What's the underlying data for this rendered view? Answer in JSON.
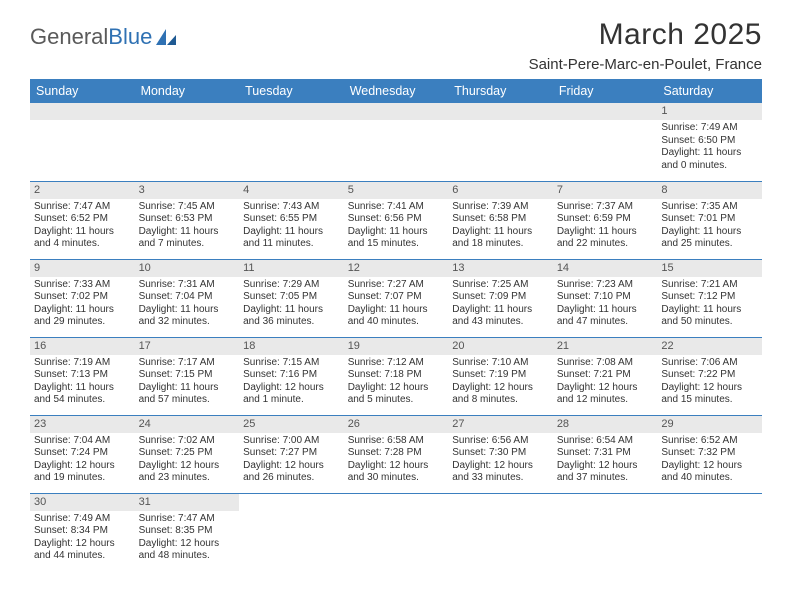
{
  "brand": {
    "part1": "General",
    "part2": "Blue"
  },
  "title": "March 2025",
  "location": "Saint-Pere-Marc-en-Poulet, France",
  "colors": {
    "header_bg": "#3b7fbf",
    "header_fg": "#ffffff",
    "daynum_bg": "#e9e9e9",
    "row_border": "#3b7fbf",
    "text": "#333333",
    "brand_accent": "#2f71b3"
  },
  "fonts": {
    "title_size": 30,
    "subtitle_size": 15,
    "header_size": 12.5,
    "cell_size": 10
  },
  "weekdays": [
    "Sunday",
    "Monday",
    "Tuesday",
    "Wednesday",
    "Thursday",
    "Friday",
    "Saturday"
  ],
  "weeks": [
    [
      null,
      null,
      null,
      null,
      null,
      null,
      {
        "n": "1",
        "sr": "Sunrise: 7:49 AM",
        "ss": "Sunset: 6:50 PM",
        "d1": "Daylight: 11 hours",
        "d2": "and 0 minutes."
      }
    ],
    [
      {
        "n": "2",
        "sr": "Sunrise: 7:47 AM",
        "ss": "Sunset: 6:52 PM",
        "d1": "Daylight: 11 hours",
        "d2": "and 4 minutes."
      },
      {
        "n": "3",
        "sr": "Sunrise: 7:45 AM",
        "ss": "Sunset: 6:53 PM",
        "d1": "Daylight: 11 hours",
        "d2": "and 7 minutes."
      },
      {
        "n": "4",
        "sr": "Sunrise: 7:43 AM",
        "ss": "Sunset: 6:55 PM",
        "d1": "Daylight: 11 hours",
        "d2": "and 11 minutes."
      },
      {
        "n": "5",
        "sr": "Sunrise: 7:41 AM",
        "ss": "Sunset: 6:56 PM",
        "d1": "Daylight: 11 hours",
        "d2": "and 15 minutes."
      },
      {
        "n": "6",
        "sr": "Sunrise: 7:39 AM",
        "ss": "Sunset: 6:58 PM",
        "d1": "Daylight: 11 hours",
        "d2": "and 18 minutes."
      },
      {
        "n": "7",
        "sr": "Sunrise: 7:37 AM",
        "ss": "Sunset: 6:59 PM",
        "d1": "Daylight: 11 hours",
        "d2": "and 22 minutes."
      },
      {
        "n": "8",
        "sr": "Sunrise: 7:35 AM",
        "ss": "Sunset: 7:01 PM",
        "d1": "Daylight: 11 hours",
        "d2": "and 25 minutes."
      }
    ],
    [
      {
        "n": "9",
        "sr": "Sunrise: 7:33 AM",
        "ss": "Sunset: 7:02 PM",
        "d1": "Daylight: 11 hours",
        "d2": "and 29 minutes."
      },
      {
        "n": "10",
        "sr": "Sunrise: 7:31 AM",
        "ss": "Sunset: 7:04 PM",
        "d1": "Daylight: 11 hours",
        "d2": "and 32 minutes."
      },
      {
        "n": "11",
        "sr": "Sunrise: 7:29 AM",
        "ss": "Sunset: 7:05 PM",
        "d1": "Daylight: 11 hours",
        "d2": "and 36 minutes."
      },
      {
        "n": "12",
        "sr": "Sunrise: 7:27 AM",
        "ss": "Sunset: 7:07 PM",
        "d1": "Daylight: 11 hours",
        "d2": "and 40 minutes."
      },
      {
        "n": "13",
        "sr": "Sunrise: 7:25 AM",
        "ss": "Sunset: 7:09 PM",
        "d1": "Daylight: 11 hours",
        "d2": "and 43 minutes."
      },
      {
        "n": "14",
        "sr": "Sunrise: 7:23 AM",
        "ss": "Sunset: 7:10 PM",
        "d1": "Daylight: 11 hours",
        "d2": "and 47 minutes."
      },
      {
        "n": "15",
        "sr": "Sunrise: 7:21 AM",
        "ss": "Sunset: 7:12 PM",
        "d1": "Daylight: 11 hours",
        "d2": "and 50 minutes."
      }
    ],
    [
      {
        "n": "16",
        "sr": "Sunrise: 7:19 AM",
        "ss": "Sunset: 7:13 PM",
        "d1": "Daylight: 11 hours",
        "d2": "and 54 minutes."
      },
      {
        "n": "17",
        "sr": "Sunrise: 7:17 AM",
        "ss": "Sunset: 7:15 PM",
        "d1": "Daylight: 11 hours",
        "d2": "and 57 minutes."
      },
      {
        "n": "18",
        "sr": "Sunrise: 7:15 AM",
        "ss": "Sunset: 7:16 PM",
        "d1": "Daylight: 12 hours",
        "d2": "and 1 minute."
      },
      {
        "n": "19",
        "sr": "Sunrise: 7:12 AM",
        "ss": "Sunset: 7:18 PM",
        "d1": "Daylight: 12 hours",
        "d2": "and 5 minutes."
      },
      {
        "n": "20",
        "sr": "Sunrise: 7:10 AM",
        "ss": "Sunset: 7:19 PM",
        "d1": "Daylight: 12 hours",
        "d2": "and 8 minutes."
      },
      {
        "n": "21",
        "sr": "Sunrise: 7:08 AM",
        "ss": "Sunset: 7:21 PM",
        "d1": "Daylight: 12 hours",
        "d2": "and 12 minutes."
      },
      {
        "n": "22",
        "sr": "Sunrise: 7:06 AM",
        "ss": "Sunset: 7:22 PM",
        "d1": "Daylight: 12 hours",
        "d2": "and 15 minutes."
      }
    ],
    [
      {
        "n": "23",
        "sr": "Sunrise: 7:04 AM",
        "ss": "Sunset: 7:24 PM",
        "d1": "Daylight: 12 hours",
        "d2": "and 19 minutes."
      },
      {
        "n": "24",
        "sr": "Sunrise: 7:02 AM",
        "ss": "Sunset: 7:25 PM",
        "d1": "Daylight: 12 hours",
        "d2": "and 23 minutes."
      },
      {
        "n": "25",
        "sr": "Sunrise: 7:00 AM",
        "ss": "Sunset: 7:27 PM",
        "d1": "Daylight: 12 hours",
        "d2": "and 26 minutes."
      },
      {
        "n": "26",
        "sr": "Sunrise: 6:58 AM",
        "ss": "Sunset: 7:28 PM",
        "d1": "Daylight: 12 hours",
        "d2": "and 30 minutes."
      },
      {
        "n": "27",
        "sr": "Sunrise: 6:56 AM",
        "ss": "Sunset: 7:30 PM",
        "d1": "Daylight: 12 hours",
        "d2": "and 33 minutes."
      },
      {
        "n": "28",
        "sr": "Sunrise: 6:54 AM",
        "ss": "Sunset: 7:31 PM",
        "d1": "Daylight: 12 hours",
        "d2": "and 37 minutes."
      },
      {
        "n": "29",
        "sr": "Sunrise: 6:52 AM",
        "ss": "Sunset: 7:32 PM",
        "d1": "Daylight: 12 hours",
        "d2": "and 40 minutes."
      }
    ],
    [
      {
        "n": "30",
        "sr": "Sunrise: 7:49 AM",
        "ss": "Sunset: 8:34 PM",
        "d1": "Daylight: 12 hours",
        "d2": "and 44 minutes."
      },
      {
        "n": "31",
        "sr": "Sunrise: 7:47 AM",
        "ss": "Sunset: 8:35 PM",
        "d1": "Daylight: 12 hours",
        "d2": "and 48 minutes."
      },
      null,
      null,
      null,
      null,
      null
    ]
  ]
}
